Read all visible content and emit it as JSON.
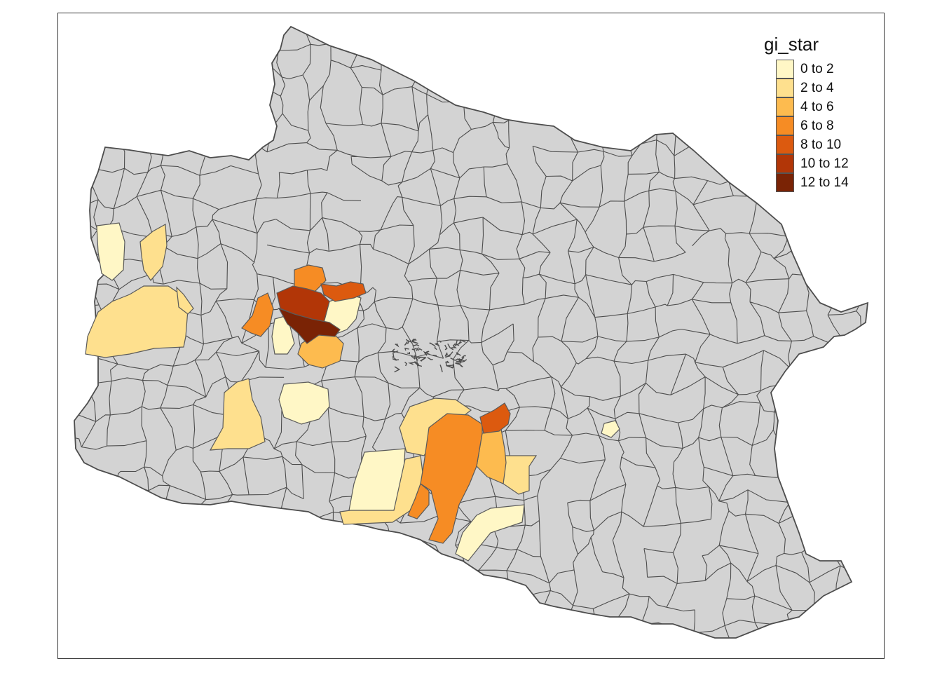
{
  "map": {
    "land_color": "#d3d3d3",
    "border_color": "#4d4d4d",
    "background_color": "#ffffff"
  },
  "legend": {
    "title": "gi_star",
    "classes": [
      {
        "label": "0 to 2",
        "color": "#fff7c6"
      },
      {
        "label": "2 to 4",
        "color": "#fee08e"
      },
      {
        "label": "4 to 6",
        "color": "#fdbb4f"
      },
      {
        "label": "6 to 8",
        "color": "#f68c24"
      },
      {
        "label": "8 to 10",
        "color": "#dc5a0f"
      },
      {
        "label": "10 to 12",
        "color": "#b23607"
      },
      {
        "label": "12 to 14",
        "color": "#7a2305"
      }
    ]
  }
}
